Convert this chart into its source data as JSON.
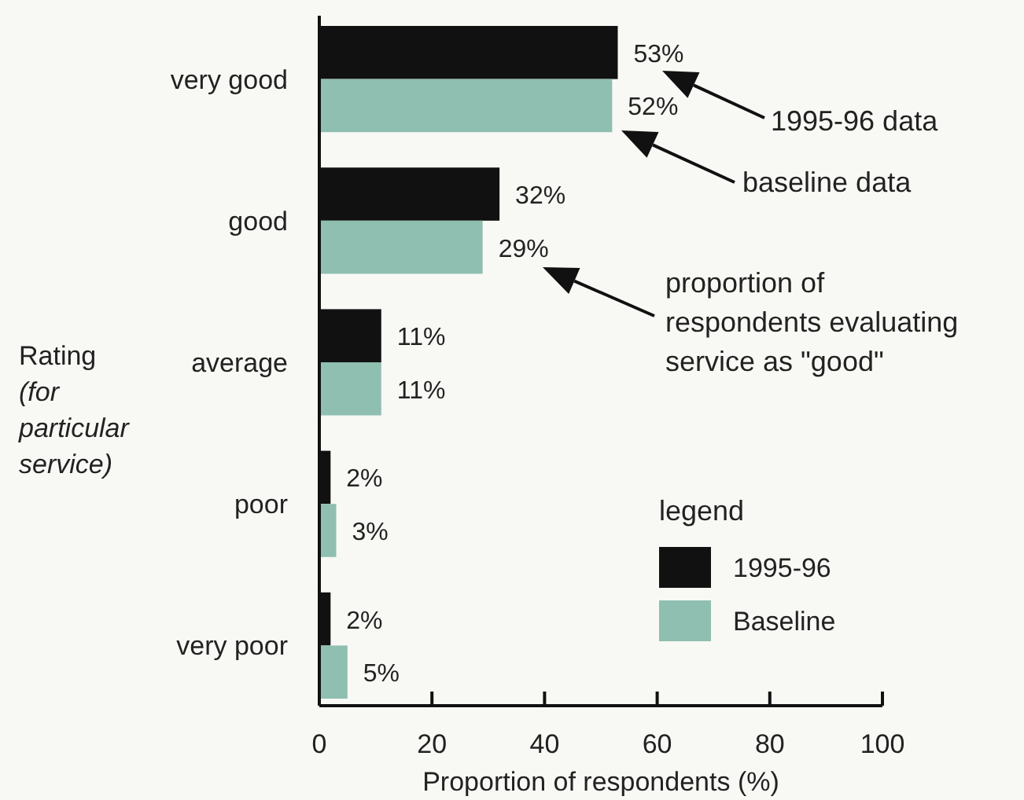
{
  "chart_data": {
    "type": "bar",
    "orientation": "horizontal",
    "xlabel": "Proportion of respondents (%)",
    "ylabel": "Rating\n(for\nparticular\nservice)",
    "categories": [
      "very good",
      "good",
      "average",
      "poor",
      "very poor"
    ],
    "series": [
      {
        "name": "1995-96",
        "color": "#111111",
        "values": [
          53,
          32,
          11,
          2,
          2
        ],
        "value_labels": [
          "53%",
          "32%",
          "11%",
          "2%",
          "2%"
        ]
      },
      {
        "name": "Baseline",
        "color": "#8fbfb0",
        "values": [
          52,
          29,
          11,
          3,
          5
        ],
        "value_labels": [
          "52%",
          "29%",
          "11%",
          "3%",
          "5%"
        ]
      }
    ],
    "xlim": [
      0,
      100
    ],
    "xticks": [
      0,
      20,
      40,
      60,
      80,
      100
    ],
    "grid": false,
    "legend": "bottom right",
    "legend_title": "legend",
    "annotations": [
      "1995-96 data",
      "baseline data",
      "proportion of\nrespondents evaluating\nservice as \"good\""
    ]
  }
}
